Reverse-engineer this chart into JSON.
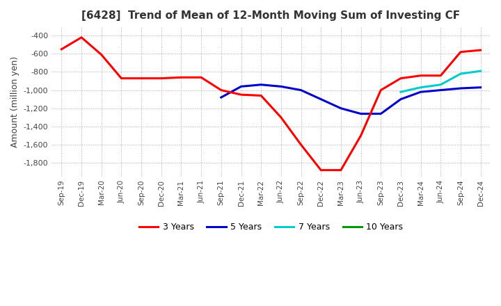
{
  "title": "[6428]  Trend of Mean of 12-Month Moving Sum of Investing CF",
  "ylabel": "Amount (million yen)",
  "ylim": [
    -1950,
    -300
  ],
  "yticks": [
    -1800,
    -1600,
    -1400,
    -1200,
    -1000,
    -800,
    -600,
    -400
  ],
  "background_color": "#ffffff",
  "grid_color": "#aaaaaa",
  "legend_labels": [
    "3 Years",
    "5 Years",
    "7 Years",
    "10 Years"
  ],
  "legend_colors": [
    "#ff0000",
    "#0000cc",
    "#00cccc",
    "#009900"
  ],
  "x_labels": [
    "Sep-19",
    "Dec-19",
    "Mar-20",
    "Jun-20",
    "Sep-20",
    "Dec-20",
    "Mar-21",
    "Jun-21",
    "Sep-21",
    "Dec-21",
    "Mar-22",
    "Jun-22",
    "Sep-22",
    "Dec-22",
    "Mar-23",
    "Jun-23",
    "Sep-23",
    "Dec-23",
    "Mar-24",
    "Jun-24",
    "Sep-24",
    "Dec-24"
  ],
  "series_3yr": [
    -550,
    -420,
    -610,
    -870,
    -870,
    -870,
    -860,
    -860,
    -1000,
    -1050,
    -1060,
    -1300,
    -1600,
    -1880,
    -1880,
    -1500,
    -1000,
    -870,
    -840,
    -840,
    -580,
    -560
  ],
  "series_5yr": [
    null,
    null,
    null,
    null,
    null,
    null,
    null,
    null,
    -1080,
    -960,
    -940,
    -960,
    -1000,
    -1100,
    -1200,
    -1260,
    -1260,
    -1100,
    -1020,
    -1000,
    -980,
    -970
  ],
  "series_7yr": [
    null,
    null,
    null,
    null,
    null,
    null,
    null,
    null,
    null,
    null,
    null,
    null,
    null,
    null,
    null,
    null,
    null,
    -1020,
    -970,
    -940,
    -820,
    -790
  ],
  "series_10yr": [
    null,
    null,
    null,
    null,
    null,
    null,
    null,
    null,
    null,
    null,
    null,
    null,
    null,
    null,
    null,
    null,
    null,
    null,
    null,
    null,
    null,
    null
  ]
}
